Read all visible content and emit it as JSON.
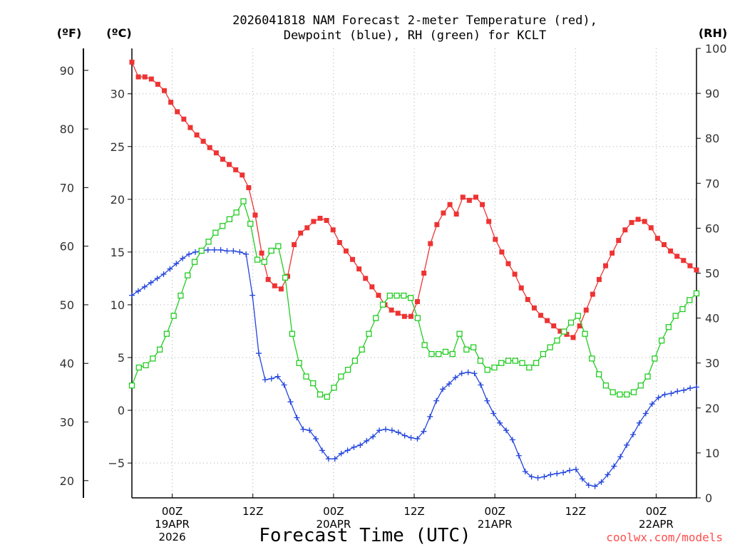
{
  "chart_data": {
    "type": "line",
    "title_line1": "2026041818 NAM Forecast 2-meter Temperature (red),",
    "title_line2": "Dewpoint (blue), RH (green) for KCLT",
    "unit_f": "(ºF)",
    "unit_c": "(ºC)",
    "unit_rh": "(RH)",
    "xlabel": "Forecast Time (UTC)",
    "credit": "coolwx.com/models",
    "x_range_hours": [
      0,
      84
    ],
    "celsius_range": [
      -8.3,
      34.3
    ],
    "fahrenheit_ticks": [
      "20",
      "30",
      "40",
      "50",
      "60",
      "70",
      "80",
      "90"
    ],
    "celsius_ticks": [
      "−5",
      "0",
      "5",
      "10",
      "15",
      "20",
      "25",
      "30"
    ],
    "rh_ticks": [
      "0",
      "10",
      "20",
      "30",
      "40",
      "50",
      "60",
      "70",
      "80",
      "90",
      "100"
    ],
    "x_ticks": [
      {
        "hour": 6,
        "label": "00Z",
        "date": "19APR",
        "year": "2026"
      },
      {
        "hour": 18,
        "label": "12Z",
        "date": "",
        "year": ""
      },
      {
        "hour": 30,
        "label": "00Z",
        "date": "20APR",
        "year": ""
      },
      {
        "hour": 42,
        "label": "12Z",
        "date": "",
        "year": ""
      },
      {
        "hour": 54,
        "label": "00Z",
        "date": "21APR",
        "year": ""
      },
      {
        "hour": 66,
        "label": "12Z",
        "date": "",
        "year": ""
      },
      {
        "hour": 78,
        "label": "00Z",
        "date": "22APR",
        "year": ""
      }
    ],
    "series": [
      {
        "name": "Temperature",
        "units": "C",
        "color": "#ee3333",
        "marker": "filled-square",
        "values": [
          33,
          31.6,
          31.6,
          31.4,
          30.9,
          30.3,
          29.2,
          28.3,
          27.6,
          26.8,
          26.1,
          25.5,
          24.9,
          24.4,
          23.8,
          23.3,
          22.8,
          22.3,
          21.1,
          18.5,
          14.9,
          12.4,
          11.8,
          11.5,
          12.7,
          15.7,
          16.8,
          17.3,
          17.9,
          18.2,
          18,
          17.1,
          15.9,
          15.1,
          14.3,
          13.4,
          12.5,
          11.7,
          10.9,
          10,
          9.5,
          9.2,
          8.9,
          8.9,
          10.3,
          13,
          15.8,
          17.6,
          18.7,
          19.5,
          18.6,
          20.2,
          19.9,
          20.2,
          19.5,
          17.9,
          16.2,
          15,
          13.9,
          12.9,
          11.6,
          10.5,
          9.7,
          9,
          8.5,
          8,
          7.5,
          7.2,
          6.9,
          8,
          9.5,
          11,
          12.4,
          13.7,
          14.9,
          16.1,
          17.1,
          17.8,
          18.1,
          17.9,
          17.3,
          16.3,
          15.7,
          15.1,
          14.6,
          14.2,
          13.7,
          13.3
        ]
      },
      {
        "name": "Dewpoint",
        "units": "C",
        "color": "#2244dd",
        "marker": "plus",
        "values": [
          10.9,
          11.3,
          11.7,
          12.1,
          12.5,
          12.9,
          13.4,
          13.9,
          14.4,
          14.8,
          15,
          15.1,
          15.2,
          15.2,
          15.2,
          15.1,
          15.1,
          15,
          14.8,
          10.9,
          5.4,
          2.9,
          3,
          3.2,
          2.4,
          0.8,
          -0.7,
          -1.8,
          -1.9,
          -2.7,
          -3.8,
          -4.6,
          -4.6,
          -4.1,
          -3.8,
          -3.5,
          -3.3,
          -2.9,
          -2.5,
          -1.9,
          -1.8,
          -1.9,
          -2.1,
          -2.4,
          -2.6,
          -2.7,
          -2,
          -0.6,
          0.9,
          2,
          2.5,
          3.1,
          3.5,
          3.6,
          3.5,
          2.4,
          0.9,
          -0.3,
          -1.2,
          -1.9,
          -2.8,
          -4.3,
          -5.8,
          -6.3,
          -6.4,
          -6.3,
          -6.1,
          -6,
          -5.9,
          -5.7,
          -5.6,
          -6.5,
          -7.1,
          -7.2,
          -6.8,
          -6.1,
          -5.3,
          -4.4,
          -3.3,
          -2.3,
          -1.2,
          -0.3,
          0.6,
          1.2,
          1.5,
          1.6,
          1.8,
          1.9,
          2.1,
          2.2
        ]
      },
      {
        "name": "RH",
        "units": "%",
        "color": "#22cc22",
        "marker": "open-square",
        "values": [
          25,
          29,
          29.5,
          31,
          33,
          36.5,
          40.5,
          45,
          49.5,
          52.5,
          55,
          57,
          59,
          60.5,
          62,
          63.5,
          66,
          61,
          53,
          52.5,
          55,
          56,
          49,
          36.5,
          30,
          27,
          25.5,
          23,
          22.5,
          24.5,
          27,
          28.5,
          30.5,
          33,
          36.5,
          40,
          43,
          45,
          45,
          45,
          44.5,
          40,
          34,
          32,
          32,
          32.5,
          32,
          36.5,
          33,
          33.5,
          30.5,
          28.5,
          29,
          30,
          30.5,
          30.5,
          30,
          29,
          30,
          32,
          33.5,
          35,
          37,
          39,
          40.5,
          36.5,
          31,
          27.5,
          25,
          23.5,
          23,
          23,
          23.5,
          25,
          27,
          31,
          35,
          38,
          40.5,
          42,
          44,
          45.5
        ]
      }
    ]
  }
}
